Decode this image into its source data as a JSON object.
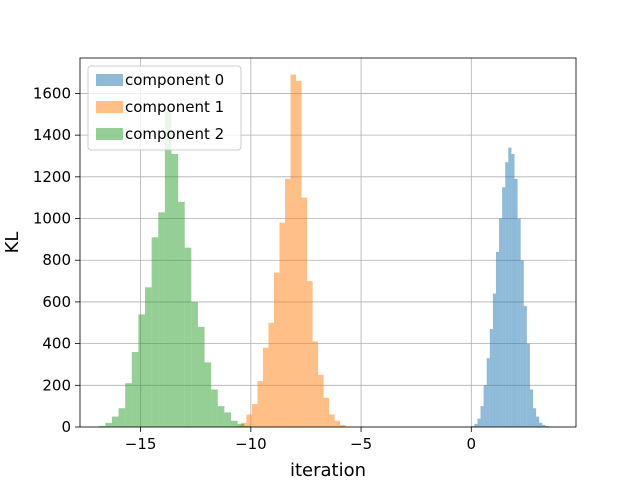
{
  "chart_data": {
    "type": "histogram",
    "xlabel": "iteration",
    "ylabel": "KL",
    "xlim": [
      -17.75,
      4.75
    ],
    "ylim": [
      0,
      1770
    ],
    "x_ticks": [
      -15,
      -10,
      -5,
      0
    ],
    "x_tick_labels": [
      "−15",
      "−10",
      "−5",
      "0"
    ],
    "y_ticks": [
      0,
      200,
      400,
      600,
      800,
      1000,
      1200,
      1400,
      1600
    ],
    "y_tick_labels": [
      "0",
      "200",
      "400",
      "600",
      "800",
      "1000",
      "1200",
      "1400",
      "1600"
    ],
    "grid": true,
    "legend_position": "upper left",
    "series": [
      {
        "name": "component 0",
        "color": "#1f77b4",
        "bin_edges": [
          0.0,
          0.14,
          0.28,
          0.42,
          0.56,
          0.7,
          0.84,
          0.98,
          1.12,
          1.26,
          1.4,
          1.54,
          1.68,
          1.82,
          1.96,
          2.1,
          2.24,
          2.38,
          2.52,
          2.66,
          2.8,
          2.94,
          3.08,
          3.22,
          3.36,
          3.5,
          3.64
        ],
        "counts": [
          5,
          15,
          40,
          100,
          200,
          330,
          470,
          640,
          840,
          1000,
          1150,
          1270,
          1340,
          1310,
          1190,
          1000,
          800,
          580,
          400,
          180,
          90,
          50,
          20,
          10,
          5,
          2
        ]
      },
      {
        "name": "component 1",
        "color": "#ff7f0e",
        "bin_edges": [
          -10.7,
          -10.45,
          -10.2,
          -9.95,
          -9.7,
          -9.45,
          -9.2,
          -8.95,
          -8.7,
          -8.45,
          -8.2,
          -7.95,
          -7.7,
          -7.45,
          -7.2,
          -6.95,
          -6.7,
          -6.45,
          -6.2,
          -5.95,
          -5.7
        ],
        "counts": [
          5,
          20,
          60,
          110,
          220,
          380,
          500,
          740,
          980,
          1190,
          1690,
          1660,
          1100,
          700,
          410,
          250,
          140,
          60,
          30,
          10
        ]
      },
      {
        "name": "component 2",
        "color": "#2ca02c",
        "bin_edges": [
          -16.9,
          -16.6,
          -16.3,
          -16.0,
          -15.7,
          -15.4,
          -15.1,
          -14.8,
          -14.5,
          -14.2,
          -13.9,
          -13.6,
          -13.3,
          -13.0,
          -12.7,
          -12.4,
          -12.1,
          -11.8,
          -11.5,
          -11.2,
          -10.9,
          -10.6,
          -10.3,
          -10.0
        ],
        "counts": [
          5,
          20,
          50,
          90,
          210,
          360,
          540,
          670,
          910,
          1030,
          1510,
          1310,
          1080,
          860,
          600,
          480,
          310,
          180,
          100,
          70,
          30,
          15,
          5
        ]
      }
    ]
  }
}
